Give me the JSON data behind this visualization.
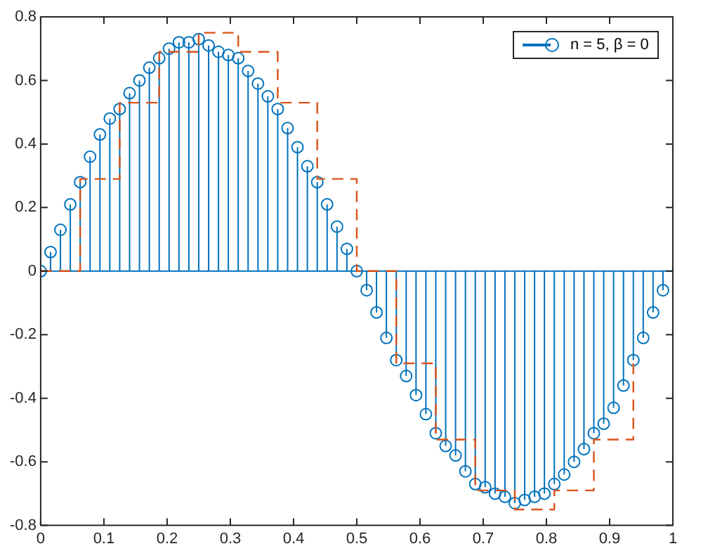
{
  "chart_data": {
    "type": "lollipop",
    "xlim": [
      0,
      1
    ],
    "ylim": [
      -0.8,
      0.8
    ],
    "xticks": [
      0,
      0.1,
      0.2,
      0.3,
      0.4,
      0.5,
      0.6,
      0.7,
      0.8,
      0.9,
      1
    ],
    "yticks": [
      -0.8,
      -0.6,
      -0.4,
      -0.2,
      0,
      0.2,
      0.4,
      0.6,
      0.8
    ],
    "grid": false,
    "legend": "top right",
    "ref_lines": [
      {
        "axis": "y",
        "value": 0,
        "color": "#0072bd"
      }
    ],
    "series": [
      {
        "name": "n = 5, β = 0",
        "marker": "circle",
        "color": "#0072bd",
        "x": [
          0,
          0.015625,
          0.03125,
          0.046875,
          0.0625,
          0.078125,
          0.09375,
          0.109375,
          0.125,
          0.140625,
          0.15625,
          0.171875,
          0.1875,
          0.203125,
          0.21875,
          0.234375,
          0.25,
          0.265625,
          0.28125,
          0.296875,
          0.3125,
          0.328125,
          0.34375,
          0.359375,
          0.375,
          0.390625,
          0.40625,
          0.421875,
          0.4375,
          0.453125,
          0.46875,
          0.484375,
          0.5,
          0.515625,
          0.53125,
          0.546875,
          0.5625,
          0.578125,
          0.59375,
          0.609375,
          0.625,
          0.640625,
          0.65625,
          0.671875,
          0.6875,
          0.703125,
          0.71875,
          0.734375,
          0.75,
          0.765625,
          0.78125,
          0.796875,
          0.8125,
          0.828125,
          0.84375,
          0.859375,
          0.875,
          0.890625,
          0.90625,
          0.921875,
          0.9375,
          0.953125,
          0.96875,
          0.984375
        ],
        "values": [
          0,
          0.06,
          0.13,
          0.21,
          0.28,
          0.36,
          0.43,
          0.48,
          0.51,
          0.56,
          0.6,
          0.64,
          0.67,
          0.7,
          0.72,
          0.72,
          0.73,
          0.71,
          0.69,
          0.68,
          0.67,
          0.63,
          0.59,
          0.55,
          0.51,
          0.45,
          0.39,
          0.33,
          0.28,
          0.21,
          0.14,
          0.07,
          0,
          -0.06,
          -0.13,
          -0.21,
          -0.28,
          -0.33,
          -0.39,
          -0.45,
          -0.51,
          -0.55,
          -0.58,
          -0.63,
          -0.67,
          -0.68,
          -0.7,
          -0.71,
          -0.73,
          -0.72,
          -0.71,
          -0.7,
          -0.67,
          -0.64,
          -0.6,
          -0.56,
          -0.51,
          -0.48,
          -0.43,
          -0.36,
          -0.28,
          -0.21,
          -0.13,
          -0.06
        ]
      },
      {
        "type": "step",
        "color": "#d95319",
        "line_style": "dashed",
        "x": [
          0,
          0.0625,
          0.125,
          0.1875,
          0.25,
          0.3125,
          0.375,
          0.4375,
          0.5,
          0.5625,
          0.625,
          0.6875,
          0.75,
          0.8125,
          0.875,
          0.9375
        ],
        "values": [
          0,
          0.29,
          0.53,
          0.69,
          0.75,
          0.69,
          0.53,
          0.29,
          0,
          -0.29,
          -0.53,
          -0.69,
          -0.75,
          -0.69,
          -0.53,
          -0.29
        ]
      }
    ]
  }
}
